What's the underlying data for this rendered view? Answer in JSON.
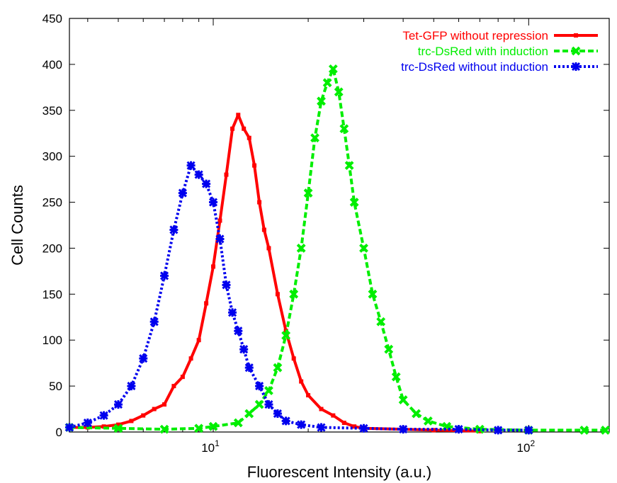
{
  "chart_data": {
    "type": "line",
    "title": "",
    "xlabel": "Fluorescent Intensity (a.u.)",
    "ylabel": "Cell Counts",
    "xscale": "log",
    "xlim": [
      3.5,
      180
    ],
    "ylim": [
      0,
      450
    ],
    "yticks": [
      "0",
      "50",
      "100",
      "150",
      "200",
      "250",
      "300",
      "350",
      "400",
      "450"
    ],
    "xticks": [
      {
        "value": 10,
        "base": "10",
        "exp": "1"
      },
      {
        "value": 100,
        "base": "10",
        "exp": "2"
      }
    ],
    "grid": false,
    "legend_position": "top-right",
    "series": [
      {
        "name": "Tet-GFP without repression",
        "color": "#ff0000",
        "marker": "square",
        "style": "solid",
        "points": [
          [
            3.5,
            5
          ],
          [
            4.0,
            5
          ],
          [
            4.5,
            6
          ],
          [
            5.0,
            8
          ],
          [
            5.5,
            12
          ],
          [
            6.0,
            18
          ],
          [
            6.5,
            25
          ],
          [
            7.0,
            30
          ],
          [
            7.5,
            50
          ],
          [
            8.0,
            60
          ],
          [
            8.5,
            80
          ],
          [
            9.0,
            100
          ],
          [
            9.5,
            140
          ],
          [
            10.0,
            180
          ],
          [
            10.5,
            230
          ],
          [
            11.0,
            280
          ],
          [
            11.5,
            330
          ],
          [
            12.0,
            345
          ],
          [
            12.5,
            330
          ],
          [
            13.0,
            320
          ],
          [
            13.5,
            290
          ],
          [
            14.0,
            250
          ],
          [
            14.5,
            220
          ],
          [
            15.0,
            200
          ],
          [
            16.0,
            150
          ],
          [
            17.0,
            110
          ],
          [
            18.0,
            80
          ],
          [
            19.0,
            55
          ],
          [
            20.0,
            40
          ],
          [
            22.0,
            25
          ],
          [
            24.0,
            18
          ],
          [
            26.0,
            10
          ],
          [
            28.0,
            6
          ],
          [
            30.0,
            4
          ],
          [
            40.0,
            3
          ],
          [
            50.0,
            2
          ],
          [
            70.0,
            1
          ]
        ]
      },
      {
        "name": "trc-DsRed with induction",
        "color": "#00ee00",
        "marker": "cross",
        "style": "dashed",
        "points": [
          [
            3.5,
            5
          ],
          [
            5.0,
            4
          ],
          [
            7.0,
            3
          ],
          [
            9.0,
            4
          ],
          [
            10.0,
            6
          ],
          [
            12.0,
            10
          ],
          [
            13.0,
            20
          ],
          [
            14.0,
            30
          ],
          [
            15.0,
            45
          ],
          [
            16.0,
            70
          ],
          [
            17.0,
            105
          ],
          [
            18.0,
            150
          ],
          [
            19.0,
            200
          ],
          [
            20.0,
            260
          ],
          [
            21.0,
            320
          ],
          [
            22.0,
            360
          ],
          [
            23.0,
            380
          ],
          [
            24.0,
            395
          ],
          [
            25.0,
            370
          ],
          [
            26.0,
            330
          ],
          [
            27.0,
            290
          ],
          [
            28.0,
            250
          ],
          [
            30.0,
            200
          ],
          [
            32.0,
            150
          ],
          [
            34.0,
            120
          ],
          [
            36.0,
            90
          ],
          [
            38.0,
            60
          ],
          [
            40.0,
            35
          ],
          [
            44.0,
            20
          ],
          [
            48.0,
            12
          ],
          [
            55.0,
            6
          ],
          [
            70.0,
            3
          ],
          [
            100.0,
            2
          ],
          [
            150.0,
            2
          ],
          [
            175.0,
            2
          ]
        ]
      },
      {
        "name": "trc-DsRed without induction",
        "color": "#0000ee",
        "marker": "star",
        "style": "dotted",
        "points": [
          [
            3.5,
            5
          ],
          [
            4.0,
            10
          ],
          [
            4.5,
            18
          ],
          [
            5.0,
            30
          ],
          [
            5.5,
            50
          ],
          [
            6.0,
            80
          ],
          [
            6.5,
            120
          ],
          [
            7.0,
            170
          ],
          [
            7.5,
            220
          ],
          [
            8.0,
            260
          ],
          [
            8.5,
            290
          ],
          [
            9.0,
            280
          ],
          [
            9.5,
            270
          ],
          [
            10.0,
            250
          ],
          [
            10.5,
            210
          ],
          [
            11.0,
            160
          ],
          [
            11.5,
            130
          ],
          [
            12.0,
            110
          ],
          [
            12.5,
            90
          ],
          [
            13.0,
            70
          ],
          [
            14.0,
            50
          ],
          [
            15.0,
            30
          ],
          [
            16.0,
            20
          ],
          [
            17.0,
            12
          ],
          [
            19.0,
            8
          ],
          [
            22.0,
            5
          ],
          [
            30.0,
            4
          ],
          [
            40.0,
            3
          ],
          [
            60.0,
            3
          ],
          [
            80.0,
            2
          ],
          [
            100.0,
            2
          ]
        ]
      }
    ]
  }
}
